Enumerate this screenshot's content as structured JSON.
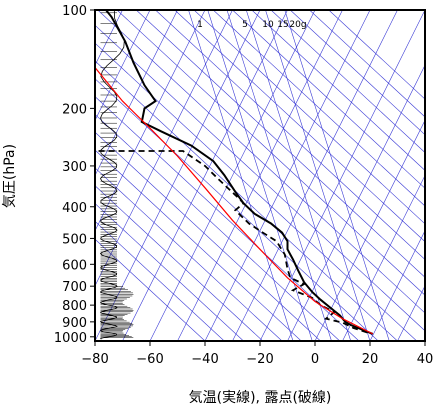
{
  "chart_data": {
    "type": "line",
    "subtype": "skew-T log-P emagram",
    "ylabel": "気圧(hPa)",
    "xlabel": "気温(実線), 露点(破線)",
    "xlim": [
      -80,
      40
    ],
    "ylim": [
      1030,
      100
    ],
    "y_scale": "log",
    "x_ticks": [
      "−80",
      "−60",
      "−40",
      "−20",
      "0",
      "20",
      "40"
    ],
    "x_tick_values": [
      -80,
      -60,
      -40,
      -20,
      0,
      20,
      40
    ],
    "y_ticks": [
      "100",
      "200",
      "300",
      "400",
      "500",
      "600",
      "700",
      "800",
      "900",
      "1000"
    ],
    "y_tick_values": [
      100,
      200,
      300,
      400,
      500,
      600,
      700,
      800,
      900,
      1000
    ],
    "mixing_ratio_labels": [
      "1",
      "5",
      "10",
      "15",
      "20g"
    ],
    "colors": {
      "temperature": "#000000",
      "dewpoint": "#000000",
      "parcel": "#ff0000",
      "background_lines": "#3b3bd6",
      "axes": "#000000"
    },
    "series": [
      {
        "points": [
          [
            21,
            980
          ],
          [
            17,
            950
          ],
          [
            13,
            920
          ],
          [
            11,
            900
          ],
          [
            9,
            860
          ],
          [
            6,
            820
          ],
          [
            2,
            770
          ],
          [
            -1,
            730
          ],
          [
            -4,
            680
          ],
          [
            -6,
            630
          ],
          [
            -8,
            580
          ],
          [
            -10,
            540
          ],
          [
            -10,
            510
          ],
          [
            -12,
            480
          ],
          [
            -16,
            450
          ],
          [
            -22,
            420
          ],
          [
            -26,
            390
          ],
          [
            -29,
            360
          ],
          [
            -33,
            320
          ],
          [
            -37,
            290
          ],
          [
            -45,
            260
          ],
          [
            -56,
            235
          ],
          [
            -63,
            220
          ],
          [
            -62,
            200
          ],
          [
            -58,
            190
          ],
          [
            -62,
            170
          ],
          [
            -66,
            145
          ],
          [
            -69,
            125
          ],
          [
            -74,
            105
          ],
          [
            -76,
            100
          ]
        ]
      },
      {
        "points": [
          [
            19,
            970
          ],
          [
            14,
            940
          ],
          [
            10,
            905
          ],
          [
            4,
            880
          ],
          [
            7,
            840
          ],
          [
            2,
            800
          ],
          [
            -1,
            760
          ],
          [
            -8,
            720
          ],
          [
            -4,
            690
          ],
          [
            -9,
            660
          ],
          [
            -10,
            620
          ],
          [
            -11,
            560
          ],
          [
            -14,
            510
          ],
          [
            -19,
            480
          ],
          [
            -24,
            450
          ],
          [
            -29,
            410
          ],
          [
            -26,
            390
          ],
          [
            -28,
            375
          ],
          [
            -35,
            330
          ],
          [
            -40,
            300
          ],
          [
            -48,
            270
          ],
          [
            -88,
            270
          ]
        ]
      },
      {
        "points": [
          [
            21,
            980
          ],
          [
            10,
            880
          ],
          [
            0,
            780
          ],
          [
            -10,
            660
          ],
          [
            -20,
            540
          ],
          [
            -30,
            440
          ],
          [
            -40,
            350
          ],
          [
            -50,
            280
          ],
          [
            -60,
            230
          ],
          [
            -70,
            190
          ],
          [
            -80,
            150
          ],
          [
            -86,
            125
          ]
        ]
      }
    ],
    "wind_barbs": "visible at left, 100–1000 hPa"
  }
}
